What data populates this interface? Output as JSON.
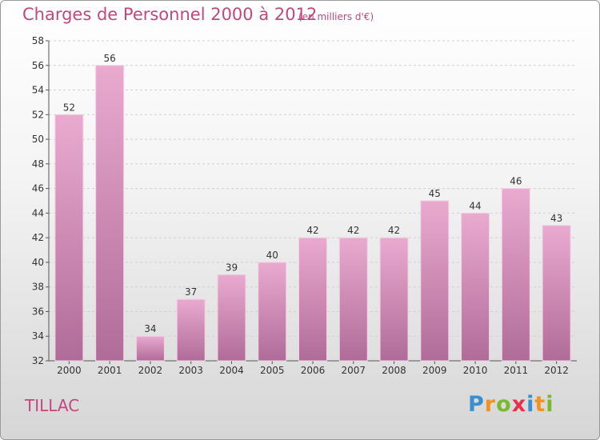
{
  "page": {
    "title": "Charges de Personnel 2000 à 2012",
    "subtitle": "(en milliers d'€)",
    "commune": "TILLAC",
    "logo": {
      "letters": [
        "P",
        "r",
        "o",
        "x",
        "i",
        "t",
        "i"
      ],
      "colors": [
        "#3a8fd0",
        "#f0941f",
        "#7ab82e",
        "#e8304a",
        "#3a8fd0",
        "#f0941f",
        "#7ab82e"
      ]
    }
  },
  "colors": {
    "accent": "#c0487e",
    "bar_top": "#eaaad0",
    "bar_bottom": "#b06c98",
    "grid": "#cfcfcf"
  },
  "chart_data": {
    "type": "bar",
    "title": "Charges de Personnel 2000 à 2012",
    "subtitle": "(en milliers d'€)",
    "categories": [
      "2000",
      "2001",
      "2002",
      "2003",
      "2004",
      "2005",
      "2006",
      "2007",
      "2008",
      "2009",
      "2010",
      "2011",
      "2012"
    ],
    "values": [
      52,
      56,
      34,
      37,
      39,
      40,
      42,
      42,
      42,
      45,
      44,
      46,
      43
    ],
    "xlabel": "",
    "ylabel": "",
    "ylim": [
      32,
      58
    ],
    "yticks": [
      32,
      34,
      36,
      38,
      40,
      42,
      44,
      46,
      48,
      50,
      52,
      54,
      56,
      58
    ],
    "grid": true
  }
}
